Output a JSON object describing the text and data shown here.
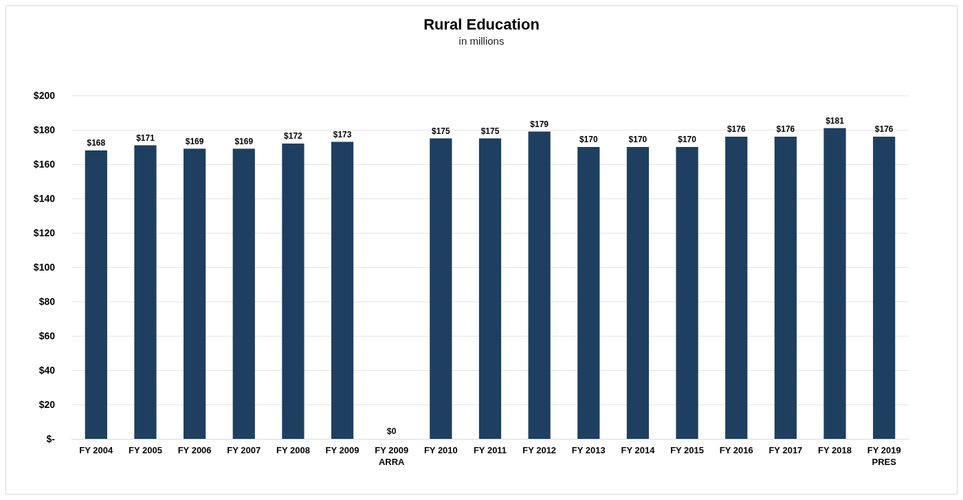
{
  "chart_data": {
    "type": "bar",
    "title": "Rural Education",
    "subtitle": "in millions",
    "categories": [
      "FY 2004",
      "FY 2005",
      "FY 2006",
      "FY 2007",
      "FY 2008",
      "FY 2009",
      "FY 2009\nARRA",
      "FY 2010",
      "FY 2011",
      "FY 2012",
      "FY 2013",
      "FY 2014",
      "FY 2015",
      "FY 2016",
      "FY 2017",
      "FY 2018",
      "FY 2019\nPRES"
    ],
    "values": [
      168,
      171,
      169,
      169,
      172,
      173,
      0,
      175,
      175,
      179,
      170,
      170,
      170,
      176,
      176,
      181,
      176
    ],
    "value_labels": [
      "$168",
      "$171",
      "$169",
      "$169",
      "$172",
      "$173",
      "$0",
      "$175",
      "$175",
      "$179",
      "$170",
      "$170",
      "$170",
      "$176",
      "$176",
      "$181",
      "$176"
    ],
    "color": "#1f3f60",
    "ylim": [
      0,
      200
    ],
    "yticks": [
      {
        "value": 0,
        "label": "$-"
      },
      {
        "value": 20,
        "label": "$20"
      },
      {
        "value": 40,
        "label": "$40"
      },
      {
        "value": 60,
        "label": "$60"
      },
      {
        "value": 80,
        "label": "$80"
      },
      {
        "value": 100,
        "label": "$100"
      },
      {
        "value": 120,
        "label": "$120"
      },
      {
        "value": 140,
        "label": "$140"
      },
      {
        "value": 160,
        "label": "$160"
      },
      {
        "value": 180,
        "label": "$180"
      },
      {
        "value": 200,
        "label": "$200"
      }
    ],
    "grid": "y"
  }
}
